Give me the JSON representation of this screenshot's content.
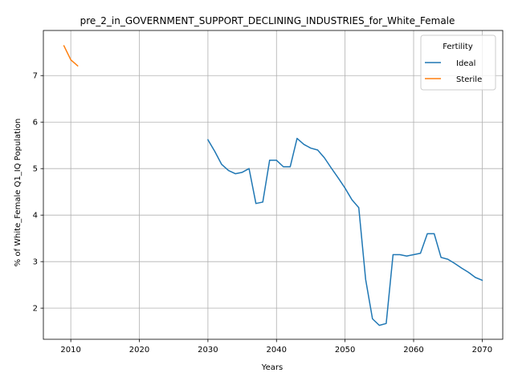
{
  "chart_data": {
    "type": "line",
    "title": "pre_2_in_GOVERNMENT_SUPPORT_DECLINING_INDUSTRIES_for_White_Female",
    "xlabel": "Years",
    "ylabel": "% of White_Female Q1_IQ Population",
    "xlim": [
      2006,
      2073
    ],
    "ylim": [
      1.33,
      7.97
    ],
    "xticks": [
      2010,
      2020,
      2030,
      2040,
      2050,
      2060,
      2070
    ],
    "yticks": [
      2,
      3,
      4,
      5,
      6,
      7
    ],
    "grid": true,
    "legend": {
      "title": "Fertility",
      "placement": "top-right"
    },
    "series": [
      {
        "name": "Ideal",
        "color": "#1f77b4",
        "x": [
          2030,
          2031,
          2032,
          2033,
          2034,
          2035,
          2036,
          2037,
          2038,
          2039,
          2040,
          2041,
          2042,
          2043,
          2044,
          2045,
          2046,
          2047,
          2048,
          2049,
          2050,
          2051,
          2052,
          2053,
          2054,
          2055,
          2056,
          2057,
          2058,
          2059,
          2060,
          2061,
          2062,
          2063,
          2064,
          2065,
          2066,
          2067,
          2068,
          2069,
          2070
        ],
        "y": [
          5.62,
          5.37,
          5.09,
          4.96,
          4.89,
          4.92,
          5.0,
          4.25,
          4.28,
          5.18,
          5.18,
          5.04,
          5.04,
          5.65,
          5.52,
          5.44,
          5.4,
          5.23,
          5.01,
          4.8,
          4.58,
          4.33,
          4.16,
          2.62,
          1.77,
          1.63,
          1.67,
          3.15,
          3.15,
          3.12,
          3.15,
          3.18,
          3.6,
          3.6,
          3.09,
          3.05,
          2.96,
          2.86,
          2.77,
          2.66,
          2.6
        ]
      },
      {
        "name": "Sterile",
        "color": "#ff7f0e",
        "x": [
          2009,
          2010,
          2011
        ],
        "y": [
          7.64,
          7.34,
          7.21
        ]
      }
    ]
  }
}
